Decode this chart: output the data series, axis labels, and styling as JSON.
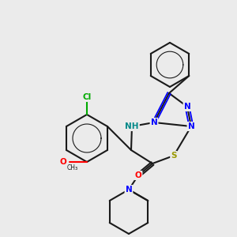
{
  "bg_color": "#ebebeb",
  "bond_color": "#1a1a1a",
  "bond_lw": 1.5,
  "atom_colors": {
    "C": "#1a1a1a",
    "N": "#0000ff",
    "O": "#ff0000",
    "S": "#999900",
    "Cl": "#00aa00",
    "H": "#008888"
  },
  "font_size": 7.5,
  "font_size_small": 6.5
}
